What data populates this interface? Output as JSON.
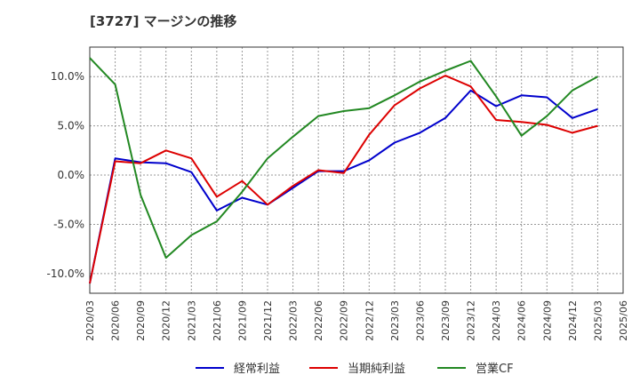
{
  "title": "[3727]  マージンの推移",
  "chart_data": {
    "type": "line",
    "x": [
      "2020/03",
      "2020/06",
      "2020/09",
      "2020/12",
      "2021/03",
      "2021/06",
      "2021/09",
      "2021/12",
      "2022/03",
      "2022/06",
      "2022/09",
      "2022/12",
      "2023/03",
      "2023/06",
      "2023/09",
      "2023/12",
      "2024/03",
      "2024/06",
      "2024/09",
      "2024/12",
      "2025/03"
    ],
    "x_ticks": [
      "2020/03",
      "2020/06",
      "2020/09",
      "2020/12",
      "2021/03",
      "2021/06",
      "2021/09",
      "2021/12",
      "2022/03",
      "2022/06",
      "2022/09",
      "2022/12",
      "2023/03",
      "2023/06",
      "2023/09",
      "2023/12",
      "2024/03",
      "2024/06",
      "2024/09",
      "2024/12",
      "2025/03",
      "2025/06"
    ],
    "y_ticks": [
      10,
      5,
      0,
      -5,
      -10
    ],
    "y_tick_labels": [
      "10.0%",
      "5.0%",
      "0.0%",
      "-5.0%",
      "-10.0%"
    ],
    "ylim": [
      -12,
      13
    ],
    "grid": true,
    "legend_position": "bottom",
    "series": [
      {
        "name": "経常利益",
        "color": "#0000cc",
        "values": [
          -11.0,
          1.7,
          1.3,
          1.2,
          0.3,
          -3.6,
          -2.3,
          -3.0,
          -1.3,
          0.4,
          0.4,
          1.5,
          3.3,
          4.3,
          5.8,
          8.6,
          7.0,
          8.1,
          7.9,
          5.8,
          6.7
        ]
      },
      {
        "name": "当期純利益",
        "color": "#dd0000",
        "values": [
          -11.0,
          1.4,
          1.2,
          2.5,
          1.7,
          -2.2,
          -0.6,
          -3.0,
          -1.1,
          0.5,
          0.2,
          4.1,
          7.1,
          8.8,
          10.1,
          9.0,
          5.6,
          5.4,
          5.1,
          4.3,
          5.0
        ]
      },
      {
        "name": "営業CF",
        "color": "#228822",
        "values": [
          11.9,
          9.2,
          -2.0,
          -8.4,
          -6.1,
          -4.7,
          -1.7,
          1.7,
          3.9,
          6.0,
          6.5,
          6.8,
          8.1,
          9.5,
          10.6,
          11.6,
          8.0,
          4.0,
          6.0,
          8.6,
          10.0
        ]
      }
    ]
  }
}
